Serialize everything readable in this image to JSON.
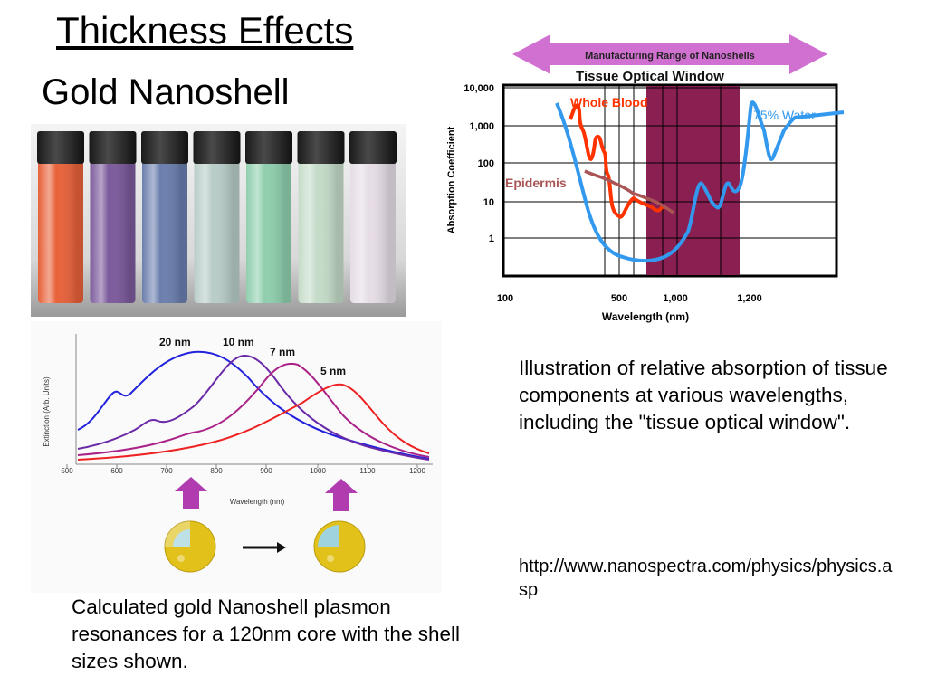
{
  "slide": {
    "title": "Thickness Effects",
    "subtitle": "Gold Nanoshell",
    "caption_right": "Illustration of relative absorption of tissue components at various wavelengths, including the \"tissue optical window\".",
    "url": "http://www.nanospectra.com/physics/physics.asp",
    "caption_left": "Calculated gold Nanoshell plasmon resonances for a 120nm core with the shell sizes shown."
  },
  "photo": {
    "vial_colors": [
      "#e8623a",
      "#7c5a9c",
      "#6b7fae",
      "#b8ccc8",
      "#8fcfae",
      "#c5dcc9",
      "#e6dde6"
    ]
  },
  "chart_data": [
    {
      "type": "line",
      "arrow_label": "Manufacturing Range of Nanoshells",
      "window_label": "Tissue Optical Window",
      "xlabel": "Wavelength (nm)",
      "ylabel": "Absorption Coefficient",
      "x_ticks": [
        "100",
        "500",
        "1,000",
        "1,200"
      ],
      "y_ticks": [
        "10,000",
        "1,000",
        "100",
        "10",
        "1"
      ],
      "series": [
        {
          "name": "Whole Blood",
          "color": "#ff3300"
        },
        {
          "name": "75% Water",
          "color": "#3399ee"
        },
        {
          "name": "Epidermis",
          "color": "#aa5555"
        }
      ],
      "colors": {
        "window": "#8a2052",
        "arrow": "#d070d0"
      }
    },
    {
      "type": "line",
      "xlabel": "Wavelength (nm)",
      "ylabel": "Extinction (Arb. Units)",
      "x_ticks": [
        "500",
        "600",
        "700",
        "800",
        "900",
        "1000",
        "1100",
        "1200"
      ],
      "series": [
        {
          "name": "20 nm",
          "color": "#2222dd"
        },
        {
          "name": "10 nm",
          "color": "#6a2aa8"
        },
        {
          "name": "7 nm",
          "color": "#aa2288"
        },
        {
          "name": "5 nm",
          "color": "#ee2222"
        }
      ],
      "colors": {
        "arrow": "#b03cb0",
        "shell": "#e2c21a",
        "core": "#9fd3dd"
      }
    }
  ]
}
